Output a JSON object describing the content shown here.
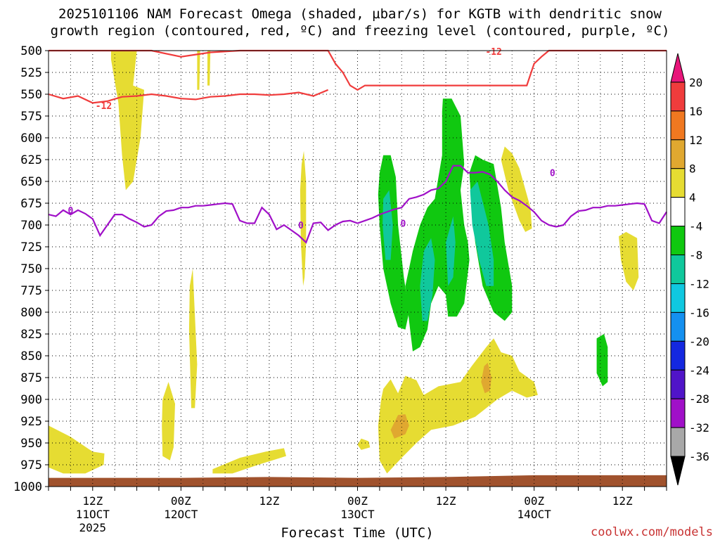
{
  "chart_data": {
    "type": "heatmap",
    "title_line_1": "2025101106 NAM Forecast Omega (shaded, µbar/s) for KGTB with dendritic snow",
    "title_line_2": "growth region (contoured, red, ºC) and freezing level (contoured, purple, ºC)",
    "xlabel": "Forecast Time (UTC)",
    "watermark": "coolwx.com/models",
    "y_ticks": [
      500,
      525,
      550,
      575,
      600,
      625,
      650,
      675,
      700,
      725,
      750,
      775,
      800,
      825,
      850,
      875,
      900,
      925,
      950,
      975,
      1000
    ],
    "ylim": [
      1000,
      500
    ],
    "xlim": [
      0,
      84
    ],
    "grid": true,
    "x_ticks": [
      {
        "t": 6,
        "label": "12Z",
        "sub1": "11OCT",
        "sub2": "2025"
      },
      {
        "t": 18,
        "label": "00Z",
        "sub1": "12OCT",
        "sub2": ""
      },
      {
        "t": 30,
        "label": "12Z",
        "sub1": "",
        "sub2": ""
      },
      {
        "t": 42,
        "label": "00Z",
        "sub1": "13OCT",
        "sub2": ""
      },
      {
        "t": 54,
        "label": "12Z",
        "sub1": "",
        "sub2": ""
      },
      {
        "t": 66,
        "label": "00Z",
        "sub1": "14OCT",
        "sub2": ""
      },
      {
        "t": 78,
        "label": "12Z",
        "sub1": "",
        "sub2": ""
      }
    ],
    "colorbar": {
      "labels": [
        "20",
        "16",
        "12",
        "8",
        "4",
        "-4",
        "-8",
        "-12",
        "-16",
        "-20",
        "-24",
        "-28",
        "-32",
        "-36"
      ],
      "colors": [
        "#e8157a",
        "#f03c3c",
        "#f07820",
        "#e0a830",
        "#e6dc32",
        "#ffffff",
        "#10c810",
        "#10c89c",
        "#10c8e0",
        "#1490f0",
        "#1428e0",
        "#5014c8",
        "#a010c8",
        "#a8a8a8",
        "#000000"
      ]
    },
    "shading_colors": {
      "positive_4_8": "#e6dc32",
      "positive_8_12": "#e0a830",
      "negative_4_8": "#10c810",
      "negative_8_12": "#10c89c",
      "terrain": "#a0522d"
    },
    "contour_colors": {
      "dendritic": "#f03c3c",
      "freezing": "#a010c8"
    },
    "contour_labels": {
      "dendritic_upper": "-12",
      "dendritic_lower": "-12",
      "freezing_left": "0",
      "freezing_mid": "0",
      "freezing_center": "0",
      "freezing_right": "0"
    },
    "freezing_level": {
      "t": [
        0,
        1,
        2,
        3,
        4,
        5,
        6,
        7,
        8,
        9,
        10,
        11,
        12,
        13,
        14,
        15,
        16,
        17,
        18,
        19,
        20,
        21,
        22,
        23,
        24,
        25,
        26,
        27,
        28,
        29,
        30,
        31,
        32,
        33,
        34,
        35,
        36,
        37,
        38,
        39,
        40,
        41,
        42,
        43,
        44,
        45,
        46,
        47,
        48,
        49,
        50,
        51,
        52,
        53,
        54,
        55,
        56,
        57,
        58,
        59,
        60,
        61,
        62,
        63,
        64,
        65,
        66,
        67,
        68,
        69,
        70,
        71,
        72,
        73,
        74,
        75,
        76,
        77,
        78,
        79,
        80,
        81,
        82,
        83,
        84
      ],
      "p": [
        688,
        690,
        683,
        688,
        683,
        687,
        693,
        712,
        700,
        688,
        688,
        693,
        697,
        702,
        700,
        690,
        684,
        683,
        680,
        680,
        678,
        678,
        677,
        676,
        675,
        676,
        695,
        698,
        698,
        680,
        688,
        705,
        700,
        706,
        712,
        720,
        698,
        697,
        706,
        700,
        696,
        695,
        698,
        695,
        692,
        688,
        685,
        682,
        680,
        670,
        668,
        665,
        660,
        658,
        650,
        632,
        632,
        640,
        640,
        639,
        642,
        650,
        660,
        668,
        672,
        678,
        685,
        695,
        700,
        702,
        700,
        690,
        684,
        683,
        680,
        680,
        678,
        678,
        677,
        676,
        675,
        676,
        695,
        698,
        685
      ]
    },
    "dendritic_upper": {
      "t": [
        0,
        3,
        6,
        10,
        14,
        18,
        22,
        26,
        30,
        34,
        37,
        38,
        39,
        40,
        41,
        42,
        43,
        46,
        50,
        54,
        58,
        62,
        65,
        66,
        67,
        68,
        69,
        70,
        72,
        76,
        80,
        84
      ],
      "p": [
        500,
        500,
        500,
        500,
        500,
        507,
        502,
        500,
        500,
        500,
        500,
        500,
        515,
        525,
        540,
        545,
        540,
        540,
        540,
        540,
        540,
        540,
        540,
        515,
        507,
        500,
        500,
        500,
        500,
        500,
        500,
        500
      ]
    },
    "dendritic_lower": {
      "t": [
        0,
        2,
        4,
        6,
        8,
        10,
        12,
        14,
        16,
        18,
        20,
        22,
        24,
        26,
        28,
        30,
        32,
        34,
        36,
        38
      ],
      "p": [
        550,
        555,
        552,
        560,
        558,
        553,
        552,
        550,
        552,
        555,
        556,
        553,
        552,
        550,
        550,
        551,
        550,
        548,
        552,
        545
      ]
    }
  }
}
